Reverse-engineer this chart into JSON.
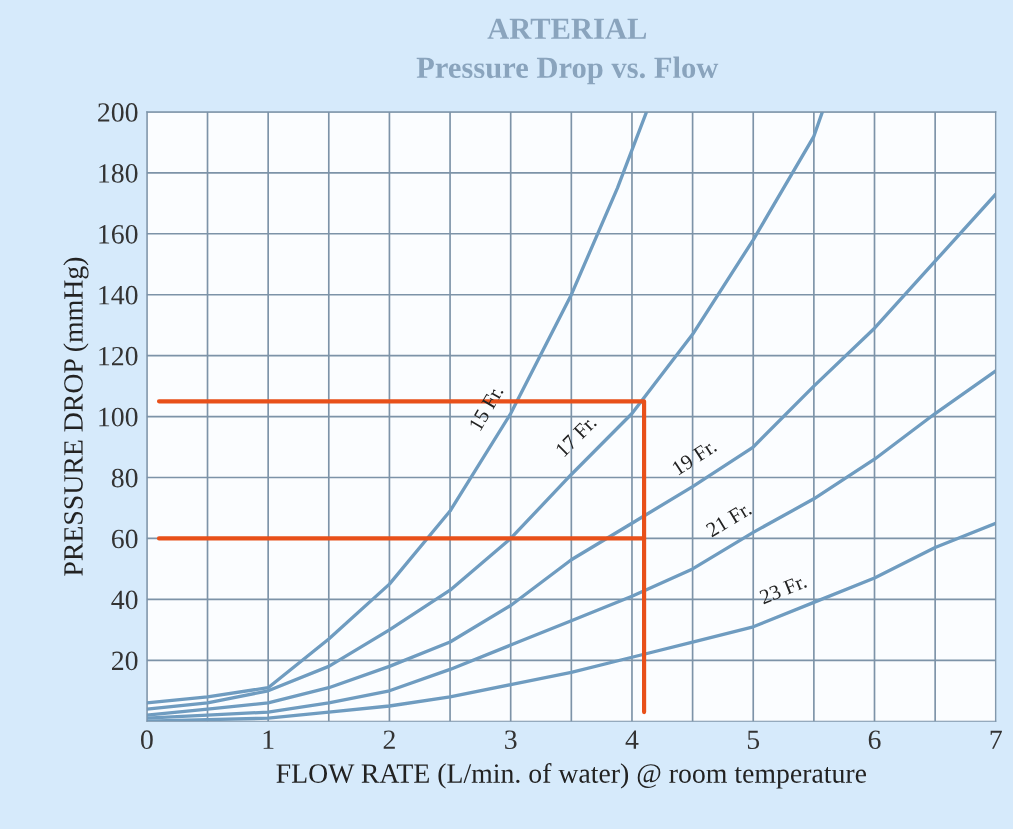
{
  "chart_data": {
    "type": "line",
    "title": "ARTERIAL",
    "subtitle": "Pressure Drop vs. Flow",
    "xlabel": "FLOW RATE (L/min. of water) @ room temperature",
    "ylabel": "PRESSURE DROP (mmHg)",
    "xlim": [
      0,
      7
    ],
    "ylim": [
      0,
      200
    ],
    "xticks": [
      0,
      {
        "value": 0.5,
        "label": null
      },
      1,
      {
        "value": 1.5,
        "label": null
      },
      2,
      {
        "value": 2.5,
        "label": null
      },
      3,
      {
        "value": 3.5,
        "label": null
      },
      4,
      {
        "value": 4.5,
        "label": null
      },
      5,
      {
        "value": 5.5,
        "label": null
      },
      6,
      {
        "value": 6.5,
        "label": null
      },
      7
    ],
    "yticks": [
      20,
      40,
      60,
      80,
      100,
      120,
      140,
      160,
      180,
      200
    ],
    "grid": true,
    "marker": "none",
    "line_style": "solid",
    "series": [
      {
        "name": "15 Fr.",
        "color": "#6f9cc0",
        "x": [
          0,
          0.5,
          1,
          1.5,
          2,
          2.5,
          3,
          3.5,
          3.88,
          4.12
        ],
        "values": [
          6,
          8,
          11,
          27,
          45,
          69,
          101,
          140,
          175,
          200
        ]
      },
      {
        "name": "17 Fr.",
        "color": "#6f9cc0",
        "x": [
          0,
          0.5,
          1,
          1.5,
          2,
          2.5,
          3,
          3.5,
          4,
          4.5,
          5,
          5.5,
          5.57
        ],
        "values": [
          4,
          6,
          10,
          18,
          30,
          43,
          60,
          81,
          101,
          127,
          158,
          192,
          200
        ]
      },
      {
        "name": "19 Fr.",
        "color": "#6f9cc0",
        "x": [
          0,
          0.5,
          1,
          1.5,
          2,
          2.5,
          3,
          3.5,
          4,
          4.5,
          5,
          5.5,
          6,
          6.5,
          7
        ],
        "values": [
          2,
          4,
          6,
          11,
          18,
          26,
          38,
          53,
          65,
          77,
          90,
          110,
          129,
          151,
          173
        ]
      },
      {
        "name": "21 Fr.",
        "color": "#6f9cc0",
        "x": [
          0,
          0.5,
          1,
          1.5,
          2,
          2.5,
          3,
          3.5,
          4,
          4.5,
          5,
          5.5,
          6,
          6.5,
          7
        ],
        "values": [
          1,
          2,
          3,
          6,
          10,
          17,
          25,
          33,
          41,
          50,
          62,
          73,
          86,
          101,
          115
        ]
      },
      {
        "name": "23 Fr.",
        "color": "#6f9cc0",
        "x": [
          0,
          0.5,
          1,
          1.5,
          2,
          2.5,
          3,
          3.5,
          4,
          4.5,
          5,
          5.5,
          6,
          6.5,
          7
        ],
        "values": [
          0,
          0.5,
          1,
          3,
          5,
          8,
          12,
          16,
          21,
          26,
          31,
          39,
          47,
          57,
          65
        ]
      },
      {
        "color": "#e8501a",
        "x": [
          0.1,
          4.1,
          4.1
        ],
        "values": [
          105,
          105,
          3
        ]
      },
      {
        "color": "#e8501a",
        "x": [
          0.1,
          4.1
        ],
        "values": [
          60,
          60
        ]
      }
    ]
  }
}
